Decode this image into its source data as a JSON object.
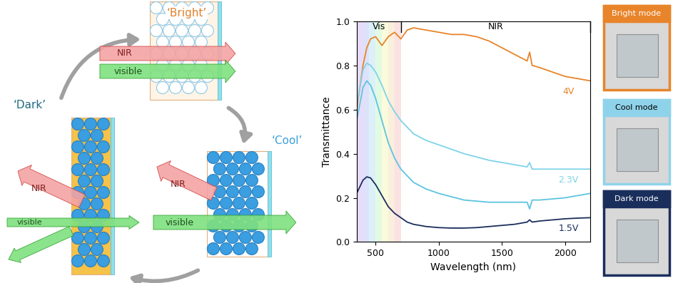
{
  "chart_data": {
    "type": "line",
    "x_label": "Wavelength (nm)",
    "y_label": "Transmittance",
    "x": [
      350,
      400,
      430,
      460,
      500,
      550,
      600,
      650,
      700,
      750,
      800,
      900,
      1000,
      1100,
      1200,
      1300,
      1400,
      1500,
      1600,
      1700,
      1720,
      1740,
      1800,
      1900,
      2000,
      2100,
      2200
    ],
    "xlim": [
      350,
      2200
    ],
    "xticks": [
      500,
      1000,
      1500,
      2000
    ],
    "ylim": [
      0.0,
      1.0
    ],
    "yticks": [
      0.0,
      0.2,
      0.4,
      0.6,
      0.8,
      1.0
    ],
    "regions": [
      {
        "label": "Vis",
        "start": 350,
        "end": 700
      },
      {
        "label": "NIR",
        "start": 700,
        "end": 2200
      }
    ],
    "series": [
      {
        "name": "4V",
        "color": "#e8842a",
        "values": [
          0.6,
          0.8,
          0.88,
          0.92,
          0.93,
          0.89,
          0.93,
          0.95,
          0.92,
          0.96,
          0.97,
          0.96,
          0.95,
          0.94,
          0.94,
          0.93,
          0.91,
          0.88,
          0.85,
          0.82,
          0.86,
          0.8,
          0.79,
          0.77,
          0.75,
          0.74,
          0.73
        ]
      },
      {
        "name": "2.3V",
        "color": "#7fd3e8",
        "values": [
          0.62,
          0.78,
          0.81,
          0.8,
          0.77,
          0.71,
          0.64,
          0.59,
          0.55,
          0.52,
          0.49,
          0.46,
          0.44,
          0.42,
          0.4,
          0.385,
          0.37,
          0.36,
          0.35,
          0.34,
          0.36,
          0.33,
          0.33,
          0.33,
          0.33,
          0.33,
          0.33
        ]
      },
      {
        "color": "#5cc4e0",
        "values": [
          0.55,
          0.7,
          0.73,
          0.71,
          0.65,
          0.55,
          0.45,
          0.38,
          0.33,
          0.3,
          0.27,
          0.24,
          0.22,
          0.205,
          0.19,
          0.185,
          0.18,
          0.18,
          0.18,
          0.18,
          0.15,
          0.19,
          0.19,
          0.195,
          0.2,
          0.21,
          0.22
        ]
      },
      {
        "name": "1.5V",
        "color": "#1a2e5c",
        "values": [
          0.22,
          0.28,
          0.295,
          0.29,
          0.26,
          0.21,
          0.16,
          0.13,
          0.11,
          0.09,
          0.08,
          0.07,
          0.065,
          0.063,
          0.063,
          0.065,
          0.07,
          0.075,
          0.08,
          0.09,
          0.1,
          0.09,
          0.095,
          0.1,
          0.105,
          0.108,
          0.11
        ]
      }
    ]
  },
  "diagram": {
    "states": [
      {
        "label": "‘Bright’",
        "color": "#e0802a",
        "arrows": [
          "NIR",
          "visible"
        ]
      },
      {
        "label": "‘Cool’",
        "color": "#3aa0d8",
        "arrows": [
          "NIR",
          "visible"
        ]
      },
      {
        "label": "‘Dark’",
        "color": "#1f6b80",
        "arrows": [
          "NIR",
          "visible"
        ]
      }
    ]
  },
  "photos": [
    {
      "label": "Bright mode",
      "color": "#e8842a"
    },
    {
      "label": "Cool mode",
      "color": "#8fd3ea"
    },
    {
      "label": "Dark mode",
      "color": "#1a2e5c"
    }
  ]
}
